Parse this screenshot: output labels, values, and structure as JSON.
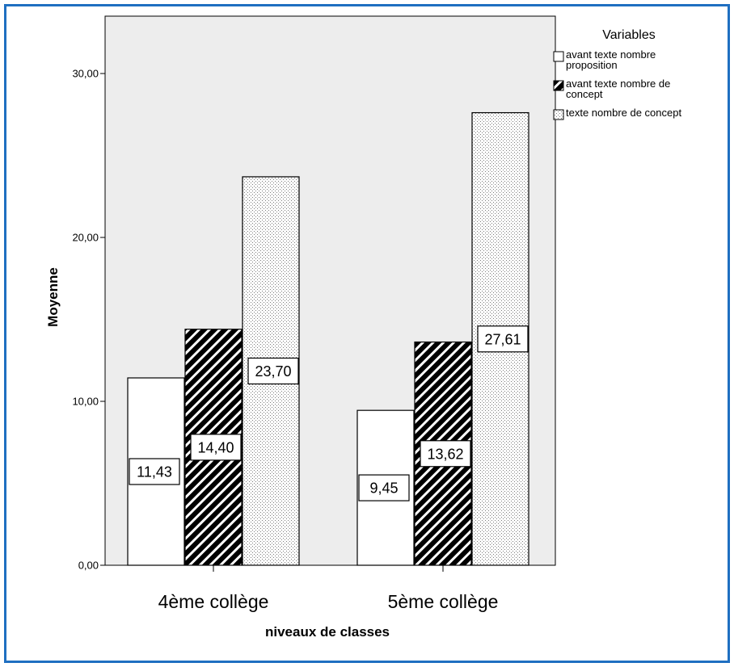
{
  "chart_data": {
    "type": "bar",
    "categories": [
      "4ème collège",
      "5ème collège"
    ],
    "series": [
      {
        "name": "avant texte nombre proposition",
        "values": [
          11.43,
          9.45
        ],
        "labels": [
          "11,43",
          "9,45"
        ],
        "pattern": "white",
        "legend_lines": [
          "avant texte nombre",
          "proposition"
        ]
      },
      {
        "name": "avant texte nombre de concept",
        "values": [
          14.4,
          13.62
        ],
        "labels": [
          "14,40",
          "13,62"
        ],
        "pattern": "diagonal-hatch",
        "legend_lines": [
          "avant texte nombre de",
          "concept"
        ]
      },
      {
        "name": "texte nombre de concept",
        "values": [
          23.7,
          27.61
        ],
        "labels": [
          "23,70",
          "27,61"
        ],
        "pattern": "vertical-dots",
        "legend_lines": [
          "texte nombre de concept"
        ]
      }
    ],
    "title": "",
    "xlabel": "niveaux de classes",
    "ylabel": "Moyenne",
    "ylim": [
      0,
      33.5
    ],
    "yticks": [
      0,
      10,
      20,
      30
    ],
    "ytick_labels": [
      "0,00",
      "10,00",
      "20,00",
      "30,00"
    ],
    "legend_title": "Variables",
    "legend_position": "top-right",
    "grid": false,
    "colors": {
      "plot_background": "#ededed",
      "frame_border": "#1f6fc1",
      "bar_fill": "#ffffff",
      "bar_stroke": "#000000"
    }
  }
}
